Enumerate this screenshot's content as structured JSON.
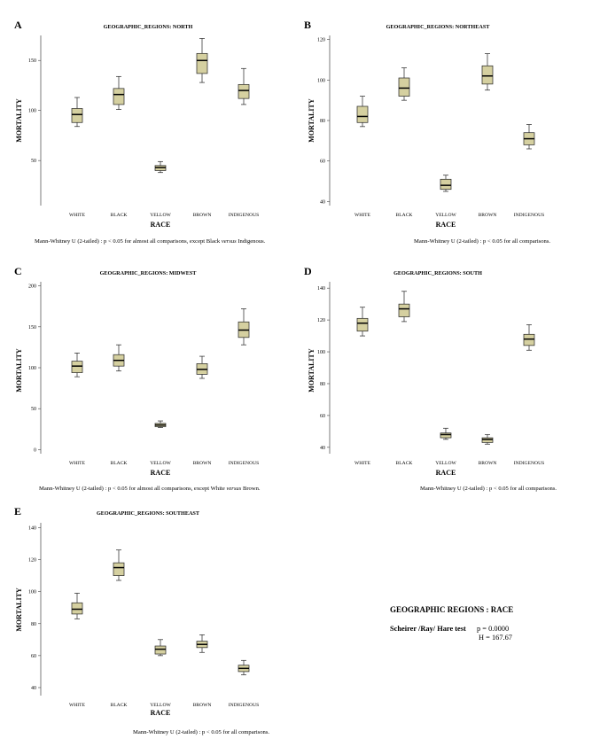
{
  "chart_data": [
    {
      "panel": "A",
      "type": "box",
      "title": "GEOGRAPHIC_REGIONS: NORTH",
      "xlabel": "RACE",
      "ylabel": "MORTALITY",
      "ylim": [
        5,
        175
      ],
      "yticks": [
        "50",
        "100",
        "150"
      ],
      "categories": [
        "WHITE",
        "BLACK",
        "YELLOW",
        "BROWN",
        "INDIGENOUS"
      ],
      "boxes": [
        {
          "min": 84,
          "q1": 88,
          "median": 96,
          "q3": 102,
          "max": 113
        },
        {
          "min": 101,
          "q1": 106,
          "median": 116,
          "q3": 122,
          "max": 134
        },
        {
          "min": 38,
          "q1": 40,
          "median": 43,
          "q3": 45,
          "max": 49
        },
        {
          "min": 128,
          "q1": 137,
          "median": 150,
          "q3": 157,
          "max": 172
        },
        {
          "min": 106,
          "q1": 112,
          "median": 120,
          "q3": 126,
          "max": 142
        }
      ],
      "note": "Mann-Whitney U (2-tailed) : p < 0.05 for almost  all comparisons, except Black ",
      "note_italic": "versus",
      "note_end": " Indigenous."
    },
    {
      "panel": "B",
      "type": "box",
      "title": "GEOGRAPHIC_REGIONS: NORTHEAST",
      "xlabel": "RACE",
      "ylabel": "MORTALITY",
      "ylim": [
        38,
        122
      ],
      "yticks": [
        "40",
        "60",
        "80",
        "100",
        "120"
      ],
      "categories": [
        "WHITE",
        "BLACK",
        "YELLOW",
        "BROWN",
        "INDIGENOUS"
      ],
      "boxes": [
        {
          "min": 77,
          "q1": 79,
          "median": 82,
          "q3": 87,
          "max": 92
        },
        {
          "min": 90,
          "q1": 92,
          "median": 96,
          "q3": 101,
          "max": 106
        },
        {
          "min": 45,
          "q1": 46,
          "median": 48,
          "q3": 51,
          "max": 53
        },
        {
          "min": 95,
          "q1": 98,
          "median": 102,
          "q3": 107,
          "max": 113
        },
        {
          "min": 66,
          "q1": 68,
          "median": 71,
          "q3": 74,
          "max": 78
        }
      ],
      "note": "Mann-Whitney U (2-tailed) : p < 0.05 for all comparisons.",
      "note_italic": "",
      "note_end": ""
    },
    {
      "panel": "C",
      "type": "box",
      "title": "GEOGRAPHIC_REGIONS: MIDWEST",
      "xlabel": "RACE",
      "ylabel": "MORTALITY",
      "ylim": [
        -5,
        205
      ],
      "yticks": [
        "0",
        "50",
        "100",
        "150",
        "200"
      ],
      "categories": [
        "WHITE",
        "BLACK",
        "YELLOW",
        "BROWN",
        "INDIGENOUS"
      ],
      "boxes": [
        {
          "min": 89,
          "q1": 94,
          "median": 102,
          "q3": 108,
          "max": 118
        },
        {
          "min": 96,
          "q1": 102,
          "median": 109,
          "q3": 116,
          "max": 128
        },
        {
          "min": 27,
          "q1": 28,
          "median": 30,
          "q3": 32,
          "max": 35
        },
        {
          "min": 87,
          "q1": 92,
          "median": 98,
          "q3": 105,
          "max": 114
        },
        {
          "min": 128,
          "q1": 137,
          "median": 146,
          "q3": 156,
          "max": 172
        }
      ],
      "note": "Mann-Whitney U (2-tailed) : p < 0.05 for almost  all comparisons, except White ",
      "note_italic": "versus",
      "note_end": " Brown."
    },
    {
      "panel": "D",
      "type": "box",
      "title": "GEOGRAPHIC_REGIONS: SOUTH",
      "xlabel": "RACE",
      "ylabel": "MORTALITY",
      "ylim": [
        36,
        144
      ],
      "yticks": [
        "40",
        "60",
        "80",
        "100",
        "120",
        "140"
      ],
      "categories": [
        "WHITE",
        "BLACK",
        "YELLOW",
        "BROWN",
        "INDIGENOUS"
      ],
      "boxes": [
        {
          "min": 110,
          "q1": 113,
          "median": 118,
          "q3": 121,
          "max": 128
        },
        {
          "min": 119,
          "q1": 122,
          "median": 127,
          "q3": 130,
          "max": 138
        },
        {
          "min": 45,
          "q1": 46,
          "median": 48,
          "q3": 49,
          "max": 52
        },
        {
          "min": 42,
          "q1": 43,
          "median": 45,
          "q3": 46,
          "max": 48
        },
        {
          "min": 101,
          "q1": 104,
          "median": 108,
          "q3": 111,
          "max": 117
        }
      ],
      "note": "Mann-Whitney U (2-tailed) : p < 0.05 for all comparisons.",
      "note_italic": "",
      "note_end": ""
    },
    {
      "panel": "E",
      "type": "box",
      "title": "GEOGRAPHIC_REGIONS: SOUTHEAST",
      "xlabel": "RACE",
      "ylabel": "MORTALITY",
      "ylim": [
        35,
        143
      ],
      "yticks": [
        "40",
        "60",
        "80",
        "100",
        "120",
        "140"
      ],
      "categories": [
        "WHITE",
        "BLACK",
        "YELLOW",
        "BROWN",
        "INDIGENOUS"
      ],
      "boxes": [
        {
          "min": 83,
          "q1": 86,
          "median": 89,
          "q3": 93,
          "max": 99
        },
        {
          "min": 107,
          "q1": 110,
          "median": 115,
          "q3": 118,
          "max": 126
        },
        {
          "min": 60,
          "q1": 61,
          "median": 64,
          "q3": 66,
          "max": 70
        },
        {
          "min": 62,
          "q1": 65,
          "median": 67,
          "q3": 69,
          "max": 73
        },
        {
          "min": 48,
          "q1": 50,
          "median": 52,
          "q3": 54,
          "max": 57
        }
      ],
      "note": "Mann-Whitney U (2-tailed) : p < 0.05 for all comparisons.",
      "note_italic": "",
      "note_end": ""
    }
  ],
  "summary": {
    "title": "GEOGRAPHIC REGIONS : RACE",
    "test": "Scheirer /Ray/ Hare test",
    "p_value": "p = 0.0000",
    "h_value": "H = 167.67"
  },
  "colors": {
    "box_fill": "#d5d0a0",
    "stroke": "#222222"
  }
}
